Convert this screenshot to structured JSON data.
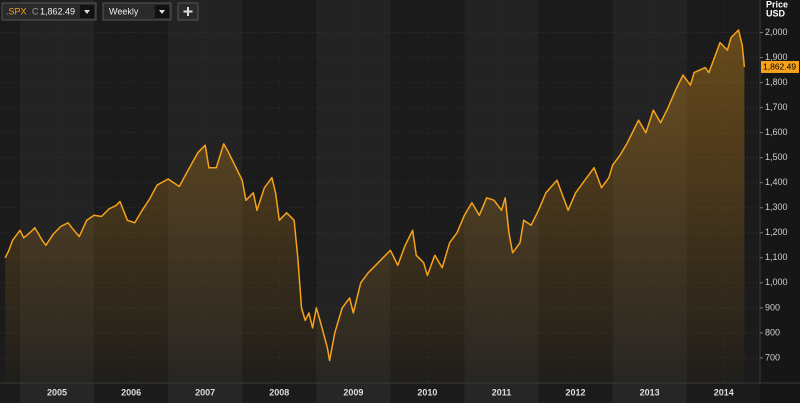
{
  "toolbar": {
    "symbol": ".SPX",
    "field": "C",
    "interval": "Weekly"
  },
  "chart_data": {
    "type": "line",
    "y_label": [
      "Price",
      "USD"
    ],
    "x": [
      2004.8,
      2004.85,
      2004.9,
      2004.95,
      2005.0,
      2005.05,
      2005.15,
      2005.2,
      2005.3,
      2005.35,
      2005.45,
      2005.55,
      2005.65,
      2005.7,
      2005.8,
      2005.9,
      2006.0,
      2006.1,
      2006.2,
      2006.3,
      2006.35,
      2006.45,
      2006.55,
      2006.65,
      2006.75,
      2006.85,
      2007.0,
      2007.15,
      2007.25,
      2007.4,
      2007.5,
      2007.55,
      2007.65,
      2007.75,
      2007.8,
      2007.9,
      2008.0,
      2008.05,
      2008.15,
      2008.2,
      2008.3,
      2008.4,
      2008.45,
      2008.5,
      2008.6,
      2008.7,
      2008.75,
      2008.8,
      2008.85,
      2008.9,
      2008.95,
      2009.0,
      2009.05,
      2009.15,
      2009.18,
      2009.25,
      2009.35,
      2009.45,
      2009.5,
      2009.6,
      2009.7,
      2009.8,
      2009.9,
      2010.0,
      2010.1,
      2010.2,
      2010.3,
      2010.35,
      2010.45,
      2010.5,
      2010.6,
      2010.7,
      2010.8,
      2010.9,
      2011.0,
      2011.1,
      2011.2,
      2011.3,
      2011.4,
      2011.5,
      2011.55,
      2011.6,
      2011.65,
      2011.75,
      2011.8,
      2011.9,
      2012.0,
      2012.1,
      2012.25,
      2012.35,
      2012.4,
      2012.5,
      2012.65,
      2012.75,
      2012.85,
      2012.95,
      2013.0,
      2013.1,
      2013.2,
      2013.35,
      2013.45,
      2013.55,
      2013.65,
      2013.75,
      2013.85,
      2013.95,
      2014.05,
      2014.1,
      2014.25,
      2014.3,
      2014.45,
      2014.55,
      2014.6,
      2014.7,
      2014.75,
      2014.78
    ],
    "series": [
      {
        "color": "#f7a21b",
        "values": [
          1100,
          1130,
          1170,
          1190,
          1210,
          1180,
          1205,
          1220,
          1170,
          1150,
          1195,
          1225,
          1240,
          1220,
          1185,
          1250,
          1270,
          1265,
          1295,
          1310,
          1325,
          1250,
          1240,
          1290,
          1335,
          1390,
          1415,
          1385,
          1440,
          1520,
          1550,
          1460,
          1460,
          1555,
          1530,
          1470,
          1410,
          1330,
          1360,
          1290,
          1380,
          1420,
          1360,
          1250,
          1280,
          1250,
          1100,
          900,
          850,
          880,
          820,
          900,
          850,
          740,
          690,
          800,
          900,
          940,
          880,
          1000,
          1040,
          1070,
          1100,
          1130,
          1070,
          1150,
          1210,
          1110,
          1080,
          1030,
          1110,
          1060,
          1160,
          1200,
          1270,
          1320,
          1270,
          1340,
          1330,
          1290,
          1340,
          1200,
          1120,
          1160,
          1250,
          1230,
          1290,
          1360,
          1410,
          1330,
          1290,
          1360,
          1420,
          1460,
          1380,
          1420,
          1470,
          1510,
          1560,
          1650,
          1600,
          1690,
          1640,
          1700,
          1770,
          1830,
          1790,
          1840,
          1860,
          1840,
          1960,
          1930,
          1980,
          2010,
          1950,
          1862.49
        ],
        "value_labels": [
          null,
          null,
          null,
          null,
          null,
          null,
          null,
          null,
          null,
          null,
          null,
          null,
          null,
          null,
          null,
          null,
          null,
          null,
          null,
          null,
          null,
          null,
          null,
          null,
          null,
          null,
          null,
          null,
          null,
          null,
          null,
          null,
          null,
          null,
          null,
          null,
          null,
          null,
          null,
          null,
          null,
          null,
          null,
          null,
          null,
          null,
          null,
          null,
          null,
          null,
          null,
          null,
          null,
          null,
          null,
          null,
          null,
          null,
          null,
          null,
          null,
          null,
          null,
          null,
          null,
          null,
          null,
          null,
          null,
          null,
          null,
          null,
          null,
          null,
          null,
          null,
          null,
          null,
          null,
          null,
          null,
          null,
          null,
          null,
          null,
          null,
          null,
          null,
          null,
          null,
          null,
          null,
          null,
          null,
          null,
          null,
          null,
          null,
          null,
          null,
          null,
          null,
          null,
          null,
          null,
          null,
          null,
          null,
          null,
          null,
          null,
          null,
          null,
          null,
          null,
          "1,862.49"
        ]
      }
    ],
    "xlim": [
      2004.73,
      2014.99
    ],
    "xticks": [
      {
        "value": 2005.5,
        "label": "2005"
      },
      {
        "value": 2006.5,
        "label": "2006"
      },
      {
        "value": 2007.5,
        "label": "2007"
      },
      {
        "value": 2008.5,
        "label": "2008"
      },
      {
        "value": 2009.5,
        "label": "2009"
      },
      {
        "value": 2010.5,
        "label": "2010"
      },
      {
        "value": 2011.5,
        "label": "2011"
      },
      {
        "value": 2012.5,
        "label": "2012"
      },
      {
        "value": 2013.5,
        "label": "2013"
      },
      {
        "value": 2014.5,
        "label": "2014"
      }
    ],
    "ylim": [
      600,
      2130
    ],
    "yticks": [
      700,
      800,
      900,
      {
        "value": 1000,
        "label": "1,000"
      },
      {
        "value": 1100,
        "label": "1,100"
      },
      {
        "value": 1200,
        "label": "1,200"
      },
      {
        "value": 1300,
        "label": "1,300"
      },
      {
        "value": 1400,
        "label": "1,400"
      },
      {
        "value": 1500,
        "label": "1,500"
      },
      {
        "value": 1600,
        "label": "1,600"
      },
      {
        "value": 1700,
        "label": "1,700"
      },
      {
        "value": 1800,
        "label": "1,800"
      },
      {
        "value": 1900,
        "label": "1,900"
      },
      {
        "value": 2000,
        "label": "2,000"
      }
    ],
    "grid": true
  }
}
